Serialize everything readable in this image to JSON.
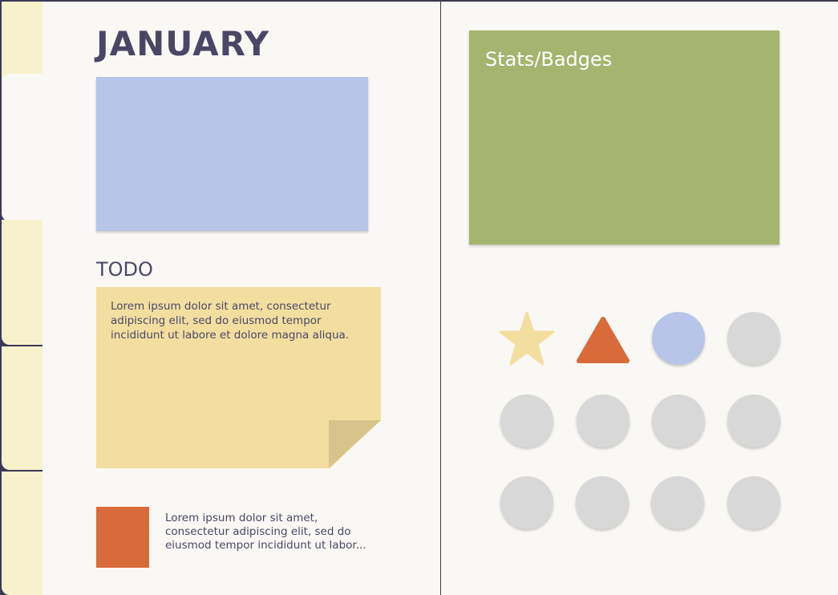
{
  "page": {
    "title": "JANUARY",
    "todo_heading": "TODO",
    "todo_text": "Lorem ipsum dolor sit amet, consectetur adipiscing elit, sed do eiusmod tempor incididunt ut labore et dolore magna aliqua.",
    "bottom_text": "Lorem ipsum dolor sit amet, consectetur adipiscing elit, sed do eiusmod tempor incididunt ut labor..."
  },
  "stats": {
    "title": "Stats/Badges",
    "badges": [
      "star",
      "triangle",
      "circle-blue",
      "locked",
      "locked",
      "locked",
      "locked",
      "locked",
      "locked",
      "locked",
      "locked",
      "locked"
    ]
  },
  "colors": {
    "accent_blue": "#b6c5e8",
    "note_yellow": "#f3de9f",
    "orange": "#d96b3a",
    "green": "#a5b46e",
    "locked": "#d8d8d8"
  }
}
